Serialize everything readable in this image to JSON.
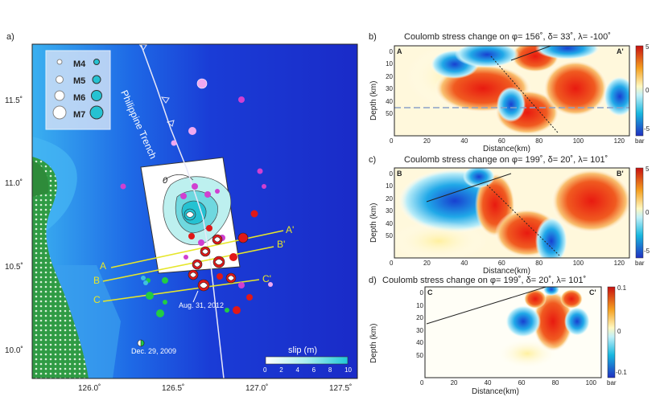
{
  "map": {
    "panel_label": "a)",
    "trench_label": "Philippine Trench",
    "lat_ticks": [
      "11.5˚",
      "11.0˚",
      "10.5˚",
      "10.0˚"
    ],
    "lon_ticks": [
      "126.0˚",
      "126.5˚",
      "127.0˚",
      "127.5˚"
    ],
    "legend": [
      "M4",
      "M5",
      "M6",
      "M7"
    ],
    "profile_labels": [
      "A",
      "A'",
      "B",
      "B'",
      "C",
      "C'"
    ],
    "event_main": "Aug. 31, 2012",
    "event_2009": "Dec. 29, 2009",
    "contour_zero": "0",
    "slip_title": "slip (m)",
    "slip_ticks": [
      "0",
      "2",
      "4",
      "6",
      "8",
      "10"
    ]
  },
  "panels": [
    {
      "id": "b",
      "label": "b)",
      "title": "Coulomb stress change on φ= 156˚, δ= 33˚, λ= -100˚",
      "left_tag": "A",
      "right_tag": "A'",
      "y_label": "Depth (km)",
      "x_label": "Distance(km)",
      "y_ticks": [
        "0",
        "10",
        "20",
        "30",
        "40",
        "50"
      ],
      "x_ticks": [
        "0",
        "20",
        "40",
        "60",
        "80",
        "100",
        "120"
      ],
      "cbar_ticks": [
        "5",
        "0",
        "-5"
      ],
      "cbar_unit": "bar"
    },
    {
      "id": "c",
      "label": "c)",
      "title": "Coulomb stress change on φ= 199˚, δ= 20˚, λ= 101˚",
      "left_tag": "B",
      "right_tag": "B'",
      "y_label": "Depth (km)",
      "x_label": "Distance(km)",
      "y_ticks": [
        "0",
        "10",
        "20",
        "30",
        "40",
        "50"
      ],
      "x_ticks": [
        "0",
        "20",
        "40",
        "60",
        "80",
        "100",
        "120"
      ],
      "cbar_ticks": [
        "5",
        "0",
        "-5"
      ],
      "cbar_unit": "bar"
    },
    {
      "id": "d",
      "label": "d)",
      "title": "Coulomb stress change on φ= 199˚, δ= 20˚, λ= 101˚",
      "left_tag": "C",
      "right_tag": "C'",
      "y_label": "Depth (km)",
      "x_label": "Distance(km)",
      "y_ticks": [
        "0",
        "10",
        "20",
        "30",
        "40",
        "50"
      ],
      "x_ticks": [
        "0",
        "20",
        "40",
        "60",
        "80",
        "100"
      ],
      "cbar_ticks": [
        "0.1",
        "0",
        "-0.1"
      ],
      "cbar_unit": "bar"
    }
  ],
  "colors": {
    "ocean_deep": "#1a2bd0",
    "ocean_shallow": "#3fa8f0",
    "land": "#2e8b3a",
    "positive": "#e8190f",
    "negative": "#1e64d8",
    "profile_line": "#e6e62a"
  }
}
